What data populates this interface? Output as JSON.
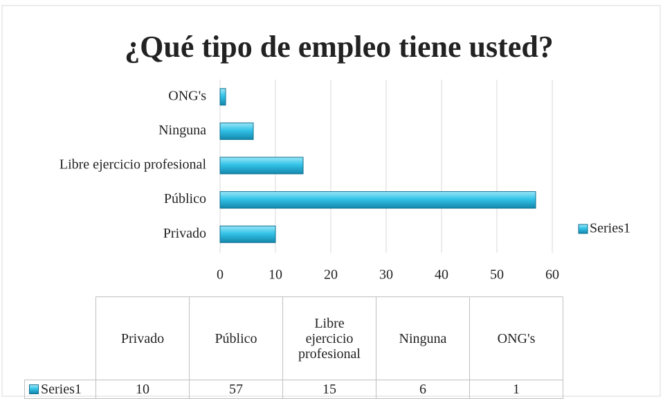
{
  "chart_data": {
    "type": "bar",
    "orientation": "horizontal",
    "title": "¿Qué tipo de empleo tiene usted?",
    "categories": [
      "Privado",
      "Público",
      "Libre ejercicio profesional",
      "Ninguna",
      "ONG's"
    ],
    "series": [
      {
        "name": "Series1",
        "color": "#33c3e8",
        "values": [
          10,
          57,
          15,
          6,
          1
        ]
      }
    ],
    "xlim": [
      0,
      60
    ],
    "xticks": [
      0,
      10,
      20,
      30,
      40,
      50,
      60
    ],
    "grid": true,
    "legend": "right",
    "data_table": true
  }
}
